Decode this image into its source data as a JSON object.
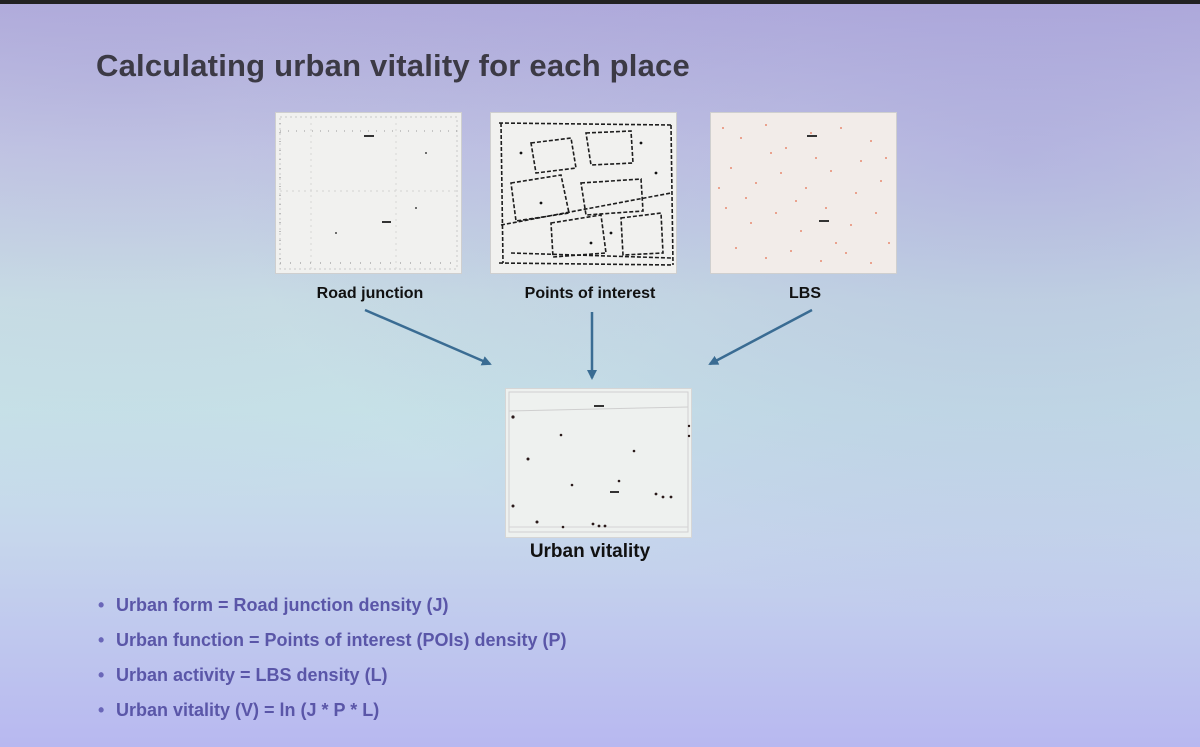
{
  "slide": {
    "title": "Calculating urban vitality for each place"
  },
  "inputs": [
    {
      "label": "Road junction"
    },
    {
      "label": "Points of interest"
    },
    {
      "label": "LBS"
    }
  ],
  "output": {
    "label": "Urban vitality"
  },
  "bullets": [
    "Urban form = Road junction density (J)",
    "Urban function = Points of interest (POIs) density (P)",
    "Urban activity = LBS density (L)",
    "Urban vitality (V) = ln (J * P * L)"
  ],
  "colors": {
    "arrow": "#3a6c93",
    "bullet_text": "#5a56a8",
    "title": "#3c3a45",
    "lbs_dots": "#e46a4a"
  }
}
